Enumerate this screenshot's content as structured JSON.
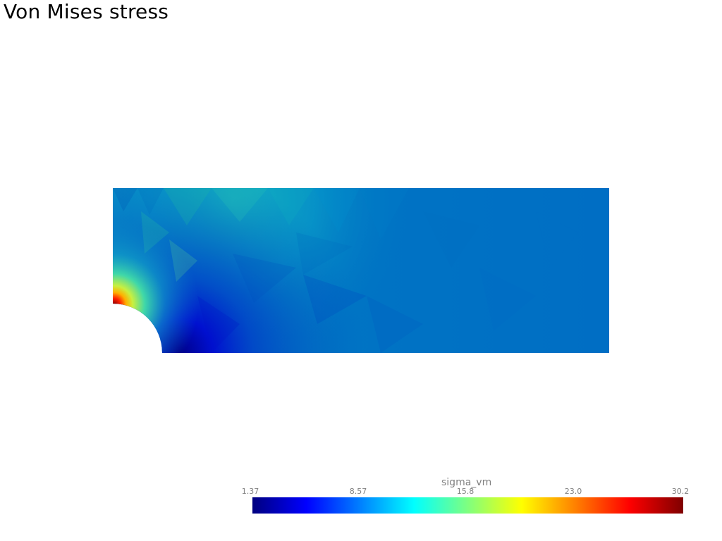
{
  "window": {
    "title": "Von Mises stress"
  },
  "colors": {
    "background": "#ffffff",
    "text": "#000000",
    "scalar_bar_text": "#808080",
    "colormap": [
      "#00007f",
      "#0000ff",
      "#007fff",
      "#00ffff",
      "#7fff7f",
      "#ffff00",
      "#ff7f00",
      "#ff0000",
      "#7f0000"
    ]
  },
  "plot": {
    "type": "mesh-scalar-field",
    "geometry": "quarter plate with circular hole",
    "scalar_field": "sigma_vm"
  },
  "scalar_bar": {
    "title": "sigma_vm",
    "colormap": "jet",
    "range": [
      1.37,
      30.2
    ],
    "tick_labels": [
      "1.37",
      "8.57",
      "15.8",
      "23.0",
      "30.2"
    ]
  }
}
